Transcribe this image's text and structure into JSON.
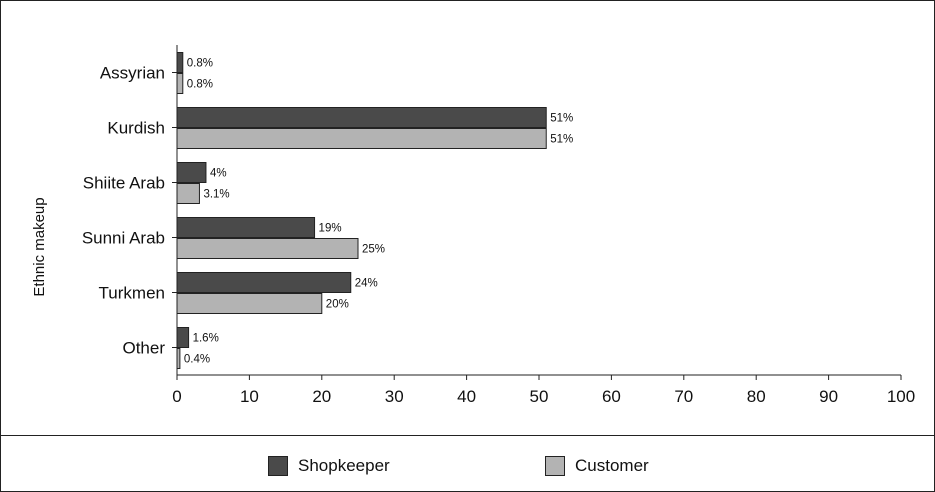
{
  "chart_data": {
    "type": "bar",
    "orientation": "horizontal",
    "categories": [
      "Assyrian",
      "Kurdish",
      "Shiite Arab",
      "Sunni Arab",
      "Turkmen",
      "Other"
    ],
    "series": [
      {
        "name": "Shopkeeper",
        "color": "#4a4a4a",
        "values": [
          0.8,
          51,
          4,
          19,
          24,
          1.6
        ],
        "labels": [
          "0.8%",
          "51%",
          "4%",
          "19%",
          "24%",
          "1.6%"
        ]
      },
      {
        "name": "Customer",
        "color": "#b3b3b3",
        "values": [
          0.8,
          51,
          3.1,
          25,
          20,
          0.4
        ],
        "labels": [
          "0.8%",
          "51%",
          "3.1%",
          "25%",
          "20%",
          "0.4%"
        ]
      }
    ],
    "ylabel": "Ethnic makeup",
    "xlim": [
      0,
      100
    ],
    "xticks": [
      0,
      10,
      20,
      30,
      40,
      50,
      60,
      70,
      80,
      90,
      100
    ],
    "grid": false,
    "legend_position": "bottom"
  }
}
